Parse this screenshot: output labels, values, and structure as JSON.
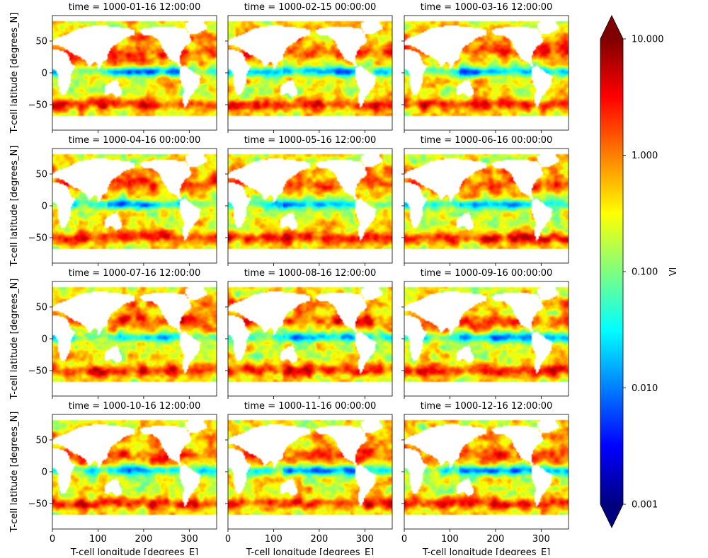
{
  "chart_data": {
    "type": "heatmap",
    "layout": "3x4 facet grid (row-major)",
    "colormap": "jet",
    "scale": "log",
    "panels": [
      {
        "title": "time = 1000-01-16 12:00:00"
      },
      {
        "title": "time = 1000-02-15 00:00:00"
      },
      {
        "title": "time = 1000-03-16 12:00:00"
      },
      {
        "title": "time = 1000-04-16 00:00:00"
      },
      {
        "title": "time = 1000-05-16 12:00:00"
      },
      {
        "title": "time = 1000-06-16 00:00:00"
      },
      {
        "title": "time = 1000-07-16 12:00:00"
      },
      {
        "title": "time = 1000-08-16 12:00:00"
      },
      {
        "title": "time = 1000-09-16 00:00:00"
      },
      {
        "title": "time = 1000-10-16 12:00:00"
      },
      {
        "title": "time = 1000-11-16 00:00:00"
      },
      {
        "title": "time = 1000-12-16 12:00:00"
      }
    ],
    "xlabel": "T-cell longitude [degrees_E]",
    "ylabel": "T-cell latitude [degrees_N]",
    "xlim": [
      0,
      360
    ],
    "ylim": [
      -90,
      90
    ],
    "xticks": [
      "0",
      "100",
      "200",
      "300"
    ],
    "xtick_values": [
      0,
      100,
      200,
      300
    ],
    "yticks": [
      "50",
      "0",
      "−50"
    ],
    "ytick_values": [
      50,
      0,
      -50
    ],
    "colorbar": {
      "label": "Vl",
      "ticks": [
        "10.000",
        "1.000",
        "0.100",
        "0.010",
        "0.001"
      ],
      "tick_values": [
        10,
        1,
        0.1,
        0.01,
        0.001
      ],
      "range": [
        0.001,
        10
      ],
      "extend": "both",
      "colors": [
        "#00007f",
        "#0000ff",
        "#007fff",
        "#00ffff",
        "#7fff7f",
        "#ffff00",
        "#ff7f00",
        "#ff0000",
        "#7f0000"
      ]
    },
    "background_land_color": "#ffffff"
  }
}
